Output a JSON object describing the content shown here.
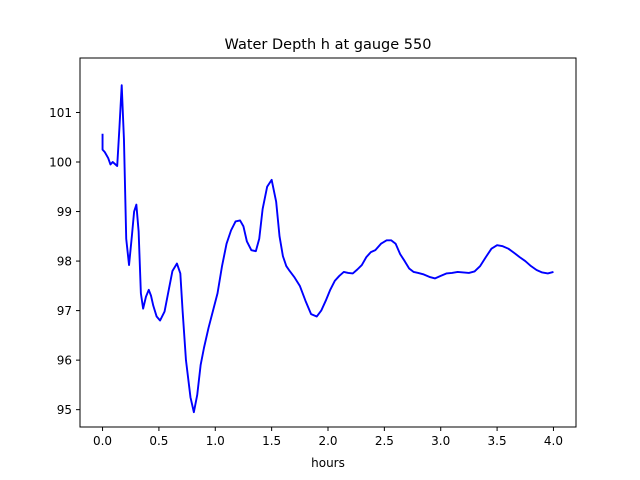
{
  "chart_data": {
    "type": "line",
    "title": "Water Depth h at gauge 550",
    "xlabel": "hours",
    "ylabel": "",
    "xlim": [
      -0.2,
      4.2
    ],
    "ylim": [
      94.65,
      102.1
    ],
    "x_ticks": [
      0.0,
      0.5,
      1.0,
      1.5,
      2.0,
      2.5,
      3.0,
      3.5,
      4.0
    ],
    "x_tick_labels": [
      "0.0",
      "0.5",
      "1.0",
      "1.5",
      "2.0",
      "2.5",
      "3.0",
      "3.5",
      "4.0"
    ],
    "y_ticks": [
      95,
      96,
      97,
      98,
      99,
      100,
      101
    ],
    "y_tick_labels": [
      "95",
      "96",
      "97",
      "98",
      "99",
      "100",
      "101"
    ],
    "grid": false,
    "legend": "none",
    "series": [
      {
        "color": "#0000ff",
        "x": [
          0.0,
          0.0,
          0.02,
          0.05,
          0.07,
          0.09,
          0.11,
          0.13,
          0.15,
          0.17,
          0.19,
          0.21,
          0.235,
          0.26,
          0.28,
          0.3,
          0.32,
          0.34,
          0.36,
          0.385,
          0.41,
          0.43,
          0.45,
          0.48,
          0.51,
          0.55,
          0.59,
          0.62,
          0.66,
          0.69,
          0.71,
          0.74,
          0.78,
          0.81,
          0.84,
          0.87,
          0.9,
          0.94,
          0.98,
          1.02,
          1.06,
          1.1,
          1.14,
          1.18,
          1.22,
          1.25,
          1.28,
          1.32,
          1.36,
          1.39,
          1.42,
          1.46,
          1.5,
          1.54,
          1.57,
          1.6,
          1.63,
          1.66,
          1.7,
          1.75,
          1.8,
          1.85,
          1.9,
          1.94,
          1.98,
          2.02,
          2.06,
          2.1,
          2.14,
          2.18,
          2.22,
          2.26,
          2.3,
          2.34,
          2.38,
          2.42,
          2.47,
          2.52,
          2.56,
          2.6,
          2.64,
          2.68,
          2.72,
          2.76,
          2.8,
          2.85,
          2.9,
          2.95,
          3.0,
          3.05,
          3.1,
          3.15,
          3.2,
          3.25,
          3.3,
          3.35,
          3.4,
          3.45,
          3.5,
          3.55,
          3.6,
          3.63,
          3.66,
          3.7,
          3.75,
          3.8,
          3.85,
          3.9,
          3.95,
          4.0
        ],
        "y": [
          100.57,
          100.25,
          100.2,
          100.08,
          99.95,
          100.0,
          99.96,
          99.92,
          100.7,
          101.55,
          100.45,
          98.45,
          97.92,
          98.5,
          99.0,
          99.14,
          98.6,
          97.35,
          97.04,
          97.28,
          97.42,
          97.3,
          97.1,
          96.88,
          96.8,
          96.98,
          97.45,
          97.8,
          97.95,
          97.75,
          97.0,
          96.0,
          95.25,
          94.95,
          95.3,
          95.9,
          96.25,
          96.65,
          97.0,
          97.35,
          97.9,
          98.35,
          98.62,
          98.8,
          98.82,
          98.7,
          98.4,
          98.22,
          98.2,
          98.45,
          99.05,
          99.5,
          99.64,
          99.2,
          98.5,
          98.1,
          97.9,
          97.8,
          97.68,
          97.5,
          97.2,
          96.93,
          96.88,
          97.0,
          97.2,
          97.42,
          97.6,
          97.7,
          97.78,
          97.76,
          97.75,
          97.83,
          97.92,
          98.08,
          98.18,
          98.22,
          98.35,
          98.42,
          98.42,
          98.35,
          98.14,
          98.0,
          97.85,
          97.78,
          97.76,
          97.73,
          97.68,
          97.65,
          97.7,
          97.75,
          97.76,
          97.78,
          97.77,
          97.76,
          97.79,
          97.9,
          98.08,
          98.25,
          98.32,
          98.3,
          98.25,
          98.2,
          98.15,
          98.08,
          98.0,
          97.9,
          97.82,
          97.77,
          97.75,
          97.78
        ]
      }
    ]
  }
}
